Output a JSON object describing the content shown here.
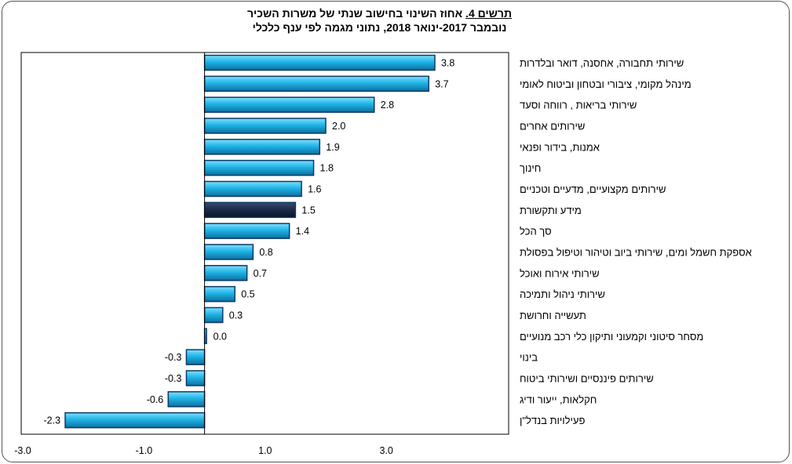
{
  "title": {
    "prefix": "תרשים 4.",
    "text": " אחוז השינוי בחישוב שנתי של משרות השכיר",
    "subtitle": "נובמבר 2017-ינואר 2018, נתוני מגמה לפי ענף כלכלי"
  },
  "colors": {
    "bar": "#1fb4e6",
    "bar_highlight": "#1b2a4a",
    "bar_edge": "#0d3a66"
  },
  "chart_data": {
    "type": "bar",
    "orientation": "horizontal",
    "categories": [
      "שירותי  תחבורה, אחסנה, דואר ובלדרות",
      "מינהל מקומי,  ציבורי ובטחון וביטוח לאומי",
      "שירותי  בריאות , רווחה וסעד",
      "שירותים  אחרים",
      "אמנות, בידור ופנאי",
      "חינוך",
      "שירותים  מקצועיים,  מדעיים וטכניים",
      "מידע ותקשורת",
      "סך הכל",
      "אספקת חשמל ומים,  שירותי  ביוב וטיהור וטיפול  בפסולת",
      "שירותי  אירוח ואוכל",
      "שירותי  ניהול ותמיכה",
      "תעשייה וחרושת",
      "מסחר סיטוני  וקמעוני  ותיקון  כלי  רכב מנועיים",
      "בינוי",
      "שירותים  פיננסיים ושירותי  ביטוח",
      "חקלאות, ייעור ודיג",
      "פעילויות  בנדל\"ן"
    ],
    "values": [
      3.8,
      3.7,
      2.8,
      2.0,
      1.9,
      1.8,
      1.6,
      1.5,
      1.4,
      0.8,
      0.7,
      0.5,
      0.3,
      0.0,
      -0.3,
      -0.3,
      -0.6,
      -2.3
    ],
    "value_labels": [
      "3.8",
      "3.7",
      "2.8",
      "2.0",
      "1.9",
      "1.8",
      "1.6",
      "1.5",
      "1.4",
      "0.8",
      "0.7",
      "0.5",
      "0.3",
      "0.0",
      "-0.3",
      "-0.3",
      "-0.6",
      "-2.3"
    ],
    "highlight_index": 7,
    "xlim": [
      -3.0,
      4.5
    ],
    "xticks": [
      -3.0,
      -1.0,
      1.0,
      3.0
    ],
    "xtick_labels": [
      "-3.0",
      "-1.0",
      "1.0",
      "3.0"
    ],
    "xlabel": "",
    "ylabel": "",
    "grid": false,
    "legend": "none"
  }
}
